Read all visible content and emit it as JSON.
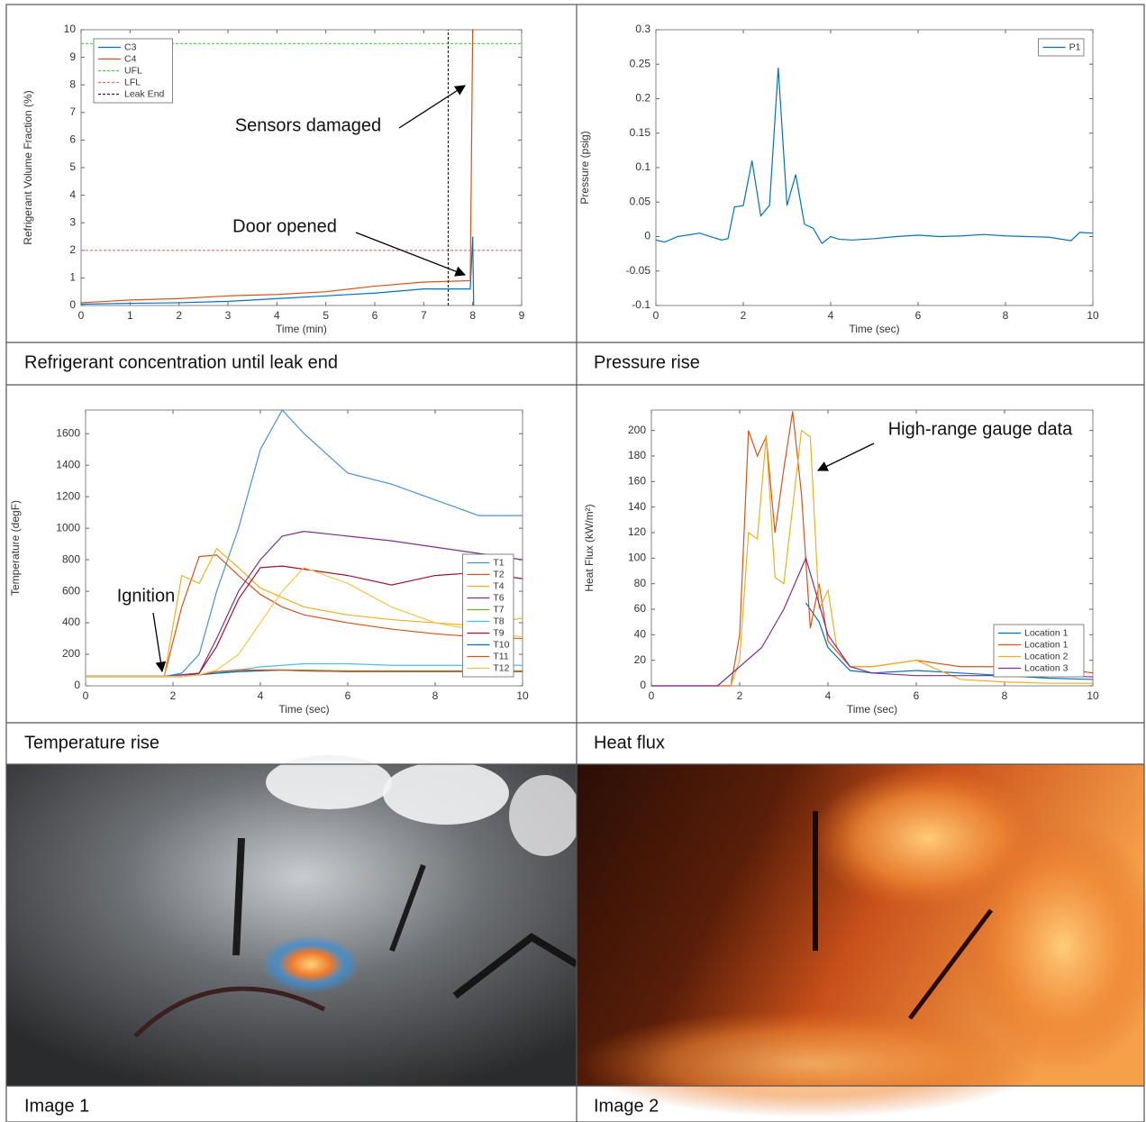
{
  "chart_data": [
    {
      "type": "line",
      "caption": "Refrigerant concentration until leak end",
      "xlabel": "Time (min)",
      "ylabel": "Refrigerant Volume Fraction (%)",
      "xlim": [
        0,
        9
      ],
      "xticks": [
        0,
        1,
        2,
        3,
        4,
        5,
        6,
        7,
        8,
        9
      ],
      "ylim": [
        0,
        10
      ],
      "yticks": [
        0,
        1,
        2,
        3,
        4,
        5,
        6,
        7,
        8,
        9,
        10
      ],
      "legend": "upper left",
      "grid": false,
      "annotations": [
        "Sensors damaged",
        "Door opened"
      ],
      "series": [
        {
          "name": "C3",
          "color": "#0072bd",
          "x": [
            0,
            1,
            2,
            3,
            4,
            5,
            6,
            7,
            7.95,
            8,
            8.02
          ],
          "values": [
            0.05,
            0.08,
            0.1,
            0.15,
            0.25,
            0.35,
            0.45,
            0.6,
            0.6,
            2.5,
            0
          ]
        },
        {
          "name": "C4",
          "color": "#d95319",
          "x": [
            0,
            1,
            2,
            3,
            4,
            5,
            6,
            7,
            7.95,
            8,
            8.02
          ],
          "values": [
            0.1,
            0.2,
            0.25,
            0.35,
            0.4,
            0.5,
            0.7,
            0.85,
            0.9,
            10,
            10
          ]
        },
        {
          "name": "UFL",
          "color": "#3fd13f",
          "dash": true,
          "x": [
            0,
            9
          ],
          "values": [
            9.5,
            9.5
          ]
        },
        {
          "name": "LFL",
          "color": "#f06a6a",
          "dash": true,
          "x": [
            0,
            9
          ],
          "values": [
            2,
            2
          ]
        },
        {
          "name": "Leak End",
          "color": "#222222",
          "dash": true,
          "x": [
            7.5,
            7.5
          ],
          "values": [
            0,
            10
          ]
        }
      ]
    },
    {
      "type": "line",
      "caption": "Pressure rise",
      "xlabel": "Time (sec)",
      "ylabel": "Pressure (psig)",
      "xlim": [
        0,
        10
      ],
      "xticks": [
        0,
        2,
        4,
        6,
        8,
        10
      ],
      "ylim": [
        -0.1,
        0.3
      ],
      "yticks": [
        -0.1,
        -0.05,
        0,
        0.05,
        0.1,
        0.15,
        0.2,
        0.25,
        0.3
      ],
      "legend": "upper right",
      "grid": false,
      "series": [
        {
          "name": "P1",
          "color": "#0072bd",
          "x": [
            0,
            0.2,
            0.5,
            1,
            1.5,
            1.65,
            1.8,
            2,
            2.2,
            2.4,
            2.6,
            2.8,
            3,
            3.2,
            3.4,
            3.6,
            3.8,
            4,
            4.2,
            4.5,
            5,
            5.5,
            6,
            6.5,
            7,
            7.5,
            8,
            8.5,
            9,
            9.5,
            9.7,
            10
          ],
          "values": [
            -0.005,
            -0.008,
            0,
            0.005,
            -0.005,
            -0.003,
            0.043,
            0.045,
            0.11,
            0.03,
            0.045,
            0.245,
            0.045,
            0.09,
            0.018,
            0.012,
            -0.01,
            0,
            -0.004,
            -0.005,
            -0.003,
            0,
            0.002,
            0,
            0.001,
            0.003,
            0.001,
            0,
            -0.001,
            -0.006,
            0.006,
            0.005
          ]
        }
      ]
    },
    {
      "type": "line",
      "caption": "Temperature rise",
      "xlabel": "Time (sec)",
      "ylabel": "Temperature (degF)",
      "xlim": [
        0,
        10
      ],
      "xticks": [
        0,
        2,
        4,
        6,
        8,
        10
      ],
      "ylim": [
        0,
        1750
      ],
      "yticks": [
        0,
        200,
        400,
        600,
        800,
        1000,
        1200,
        1400,
        1600
      ],
      "legend": "lower right",
      "grid": false,
      "annotations": [
        "Ignition"
      ],
      "x": [
        0,
        1.8,
        2.2,
        2.6,
        3,
        3.5,
        4,
        4.5,
        5,
        6,
        7,
        8,
        9,
        10
      ],
      "series": [
        {
          "name": "T1",
          "color": "#4a90d9",
          "values": [
            60,
            60,
            80,
            200,
            600,
            1000,
            1500,
            1750,
            1600,
            1350,
            1280,
            1180,
            1080,
            1080
          ]
        },
        {
          "name": "T2",
          "color": "#d95319",
          "values": [
            60,
            60,
            500,
            820,
            830,
            700,
            580,
            500,
            450,
            400,
            360,
            330,
            310,
            300
          ]
        },
        {
          "name": "T4",
          "color": "#edb120",
          "values": [
            60,
            60,
            700,
            650,
            870,
            750,
            620,
            560,
            500,
            450,
            420,
            400,
            380,
            430
          ]
        },
        {
          "name": "T6",
          "color": "#7e2f8e",
          "values": [
            60,
            60,
            70,
            80,
            300,
            600,
            800,
            950,
            980,
            950,
            920,
            880,
            840,
            800
          ]
        },
        {
          "name": "T7",
          "color": "#77ac30",
          "values": [
            60,
            60,
            60,
            70,
            80,
            90,
            100,
            100,
            100,
            95,
            95,
            95,
            95,
            95
          ]
        },
        {
          "name": "T8",
          "color": "#4dbeee",
          "values": [
            60,
            60,
            60,
            70,
            80,
            100,
            120,
            130,
            140,
            140,
            130,
            130,
            130,
            130
          ]
        },
        {
          "name": "T9",
          "color": "#a2142f",
          "values": [
            60,
            60,
            60,
            80,
            250,
            550,
            750,
            760,
            740,
            700,
            640,
            700,
            720,
            680
          ]
        },
        {
          "name": "T10",
          "color": "#0072bd",
          "values": [
            60,
            60,
            60,
            70,
            80,
            90,
            95,
            100,
            95,
            90,
            90,
            90,
            90,
            90
          ]
        },
        {
          "name": "T11",
          "color": "#d95319",
          "values": [
            60,
            60,
            60,
            70,
            90,
            100,
            100,
            100,
            95,
            90,
            90,
            90,
            90,
            90
          ]
        },
        {
          "name": "T12",
          "color": "#f0c64a",
          "values": [
            60,
            60,
            60,
            70,
            100,
            200,
            400,
            600,
            750,
            650,
            500,
            400,
            350,
            310
          ]
        }
      ]
    },
    {
      "type": "line",
      "caption": "Heat flux",
      "xlabel": "Time (sec)",
      "ylabel": "Heat Flux (kW/m²)",
      "xlim": [
        0,
        10
      ],
      "xticks": [
        0,
        2,
        4,
        6,
        8,
        10
      ],
      "ylim": [
        0,
        216
      ],
      "yticks": [
        0,
        20,
        40,
        60,
        80,
        100,
        120,
        140,
        160,
        180,
        200
      ],
      "legend": "lower right",
      "grid": false,
      "annotations": [
        "High-range gauge data"
      ],
      "series": [
        {
          "name": "Location 1",
          "color": "#0072bd",
          "x": [
            3.5,
            3.8,
            4,
            4.5,
            5,
            6,
            7,
            8,
            9,
            10
          ],
          "values": [
            65,
            50,
            30,
            12,
            10,
            12,
            10,
            8,
            6,
            5
          ]
        },
        {
          "name": "Location 1",
          "color": "#d95319",
          "x": [
            0,
            1.8,
            2,
            2.2,
            2.4,
            2.6,
            2.8,
            3,
            3.2,
            3.4,
            3.6,
            3.8,
            4,
            4.5,
            5,
            6,
            7,
            8,
            9,
            10
          ],
          "values": [
            0,
            0,
            40,
            200,
            180,
            195,
            120,
            170,
            215,
            150,
            45,
            80,
            35,
            15,
            15,
            20,
            15,
            15,
            15,
            10
          ]
        },
        {
          "name": "Location 2",
          "color": "#edb120",
          "x": [
            1.8,
            2,
            2.2,
            2.4,
            2.6,
            2.8,
            3,
            3.2,
            3.4,
            3.6,
            3.8,
            4,
            4.2,
            4.5,
            5,
            6,
            7,
            8,
            9,
            10
          ],
          "values": [
            0,
            20,
            120,
            115,
            195,
            85,
            80,
            140,
            200,
            195,
            60,
            75,
            30,
            15,
            15,
            20,
            5,
            3,
            2,
            2
          ]
        },
        {
          "name": "Location 3",
          "color": "#7e2f8e",
          "x": [
            0,
            1.5,
            2,
            2.5,
            3,
            3.5,
            4,
            4.5,
            5,
            6,
            7,
            8,
            9,
            10
          ],
          "values": [
            0,
            0,
            15,
            30,
            60,
            100,
            40,
            15,
            10,
            8,
            8,
            8,
            8,
            7
          ]
        }
      ]
    }
  ],
  "images": [
    {
      "label": "Image 1"
    },
    {
      "label": "Image 2"
    }
  ]
}
